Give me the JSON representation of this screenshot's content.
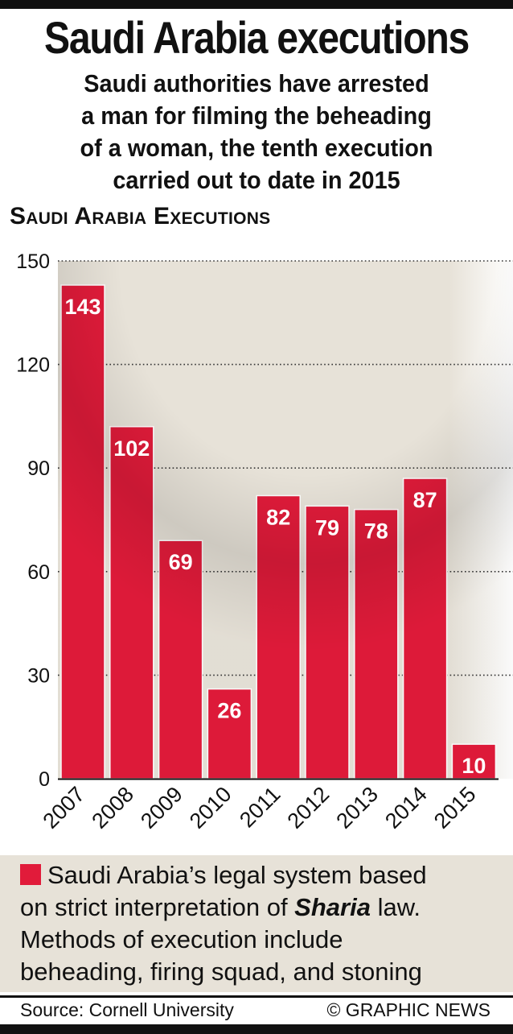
{
  "title": "Saudi Arabia executions",
  "subtitle_lines": [
    "Saudi authorities have arrested",
    "a man for filming the beheading",
    "of a woman, the tenth execution",
    "carried out to date in 2015"
  ],
  "note": {
    "line1": "Saudi Arabia’s legal system based",
    "line2_before": "on strict interpretation of ",
    "line2_em": "Sharia",
    "line2_after": " law.",
    "line3": "Methods of execution include",
    "line4": "beheading, firing squad, and stoning"
  },
  "source": "Source: Cornell University",
  "credit": "© GRAPHIC NEWS",
  "colors": {
    "bar": "#e11b3a",
    "bar_shadow": "#c2182f",
    "panel_bg": "#e7e2d8",
    "text": "#111111"
  },
  "chart_data": {
    "type": "bar",
    "title": "Saudi Arabia Executions",
    "categories": [
      "2007",
      "2008",
      "2009",
      "2010",
      "2011",
      "2012",
      "2013",
      "2014",
      "2015"
    ],
    "values": [
      143,
      102,
      69,
      26,
      82,
      79,
      78,
      87,
      10
    ],
    "data_labels": [
      "143",
      "102",
      "69",
      "26",
      "82",
      "79",
      "78",
      "87",
      "10"
    ],
    "ylim": [
      0,
      150
    ],
    "yticks": [
      0,
      30,
      60,
      90,
      120,
      150
    ],
    "ytick_labels": [
      "0",
      "30",
      "60",
      "90",
      "120",
      "150"
    ],
    "xlabel": "",
    "ylabel": "",
    "grid": true,
    "grid_style": "dotted",
    "legend": false
  }
}
